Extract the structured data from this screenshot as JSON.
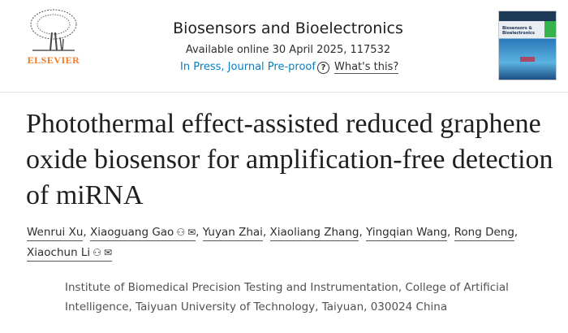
{
  "publisher": {
    "logo_text": "ELSEVIER"
  },
  "journal": {
    "title": "Biosensors and Bioelectronics",
    "availability": "Available online 30 April 2025, 117532",
    "status": "In Press, Journal Pre-proof",
    "help_label": "What's this?",
    "cover_text": "Biosensors & Bioelectronics"
  },
  "article": {
    "title": "Photothermal effect-assisted reduced graphene oxide biosensor for amplification-free detection of miRNA"
  },
  "authors": [
    {
      "name": "Wenrui Xu",
      "sep": ","
    },
    {
      "name": "Xiaoguang Gao",
      "sep": ",",
      "corresponding": true
    },
    {
      "name": "Yuyan Zhai",
      "sep": ","
    },
    {
      "name": "Xiaoliang Zhang",
      "sep": ","
    },
    {
      "name": "Yingqian Wang",
      "sep": ","
    },
    {
      "name": "Rong Deng",
      "sep": ","
    },
    {
      "name": "Xiaochun Li",
      "sep": "",
      "corresponding": true
    }
  ],
  "icons": {
    "person": "person-icon",
    "email": "envelope-icon",
    "help": "question-circle-icon"
  },
  "affiliation": "Institute of Biomedical Precision Testing and Instrumentation, College of Artificial Intelligence, Taiyuan University of Technology, Taiyuan, 030024 China",
  "colors": {
    "brand": "#f07a22",
    "link": "#0c7dbb"
  }
}
